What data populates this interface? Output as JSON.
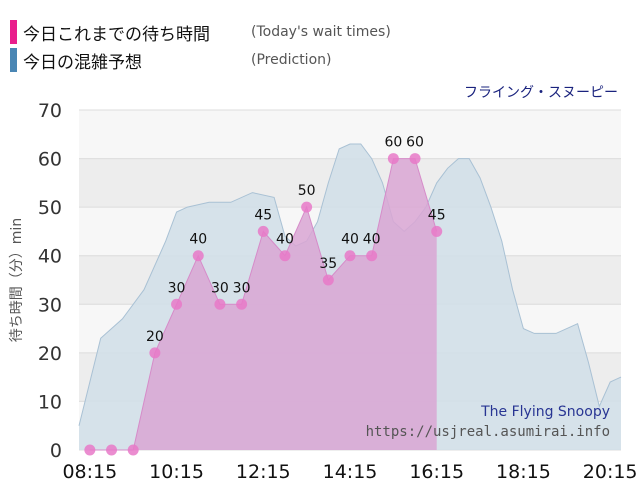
{
  "legend": {
    "today_label": "今日これまでの待ち時間",
    "today_sub": "(Today's wait times)",
    "prediction_label": "今日の混雑予想",
    "prediction_sub": "(Prediction)"
  },
  "colors": {
    "today": "#e91e8c",
    "prediction": "#4a86b4",
    "today_fill": "#d9a6d4",
    "prediction_fill": "#d2dfe8",
    "point": "#e879c8"
  },
  "chart_data": {
    "type": "area",
    "title": "フライング・スヌーピー",
    "ylabel": "待ち時間（分）min",
    "ylim": [
      0,
      70
    ],
    "yticks": [
      0,
      10,
      20,
      30,
      40,
      50,
      60,
      70
    ],
    "xlim": [
      "08:00",
      "20:30"
    ],
    "xticks": [
      "08:15",
      "10:15",
      "12:15",
      "14:15",
      "16:15",
      "18:15",
      "20:15"
    ],
    "grid": true,
    "series": [
      {
        "name": "今日の混雑予想",
        "type": "area",
        "points": [
          [
            "08:00",
            5
          ],
          [
            "08:30",
            23
          ],
          [
            "09:00",
            27
          ],
          [
            "09:30",
            33
          ],
          [
            "10:00",
            43
          ],
          [
            "10:15",
            49
          ],
          [
            "10:30",
            50
          ],
          [
            "11:00",
            51
          ],
          [
            "11:30",
            51
          ],
          [
            "12:00",
            53
          ],
          [
            "12:30",
            52
          ],
          [
            "12:45",
            44
          ],
          [
            "13:00",
            42
          ],
          [
            "13:15",
            43
          ],
          [
            "13:30",
            47
          ],
          [
            "13:45",
            55
          ],
          [
            "14:00",
            62
          ],
          [
            "14:15",
            63
          ],
          [
            "14:30",
            63
          ],
          [
            "14:45",
            60
          ],
          [
            "15:00",
            55
          ],
          [
            "15:15",
            47
          ],
          [
            "15:30",
            45
          ],
          [
            "15:45",
            47
          ],
          [
            "16:00",
            50
          ],
          [
            "16:15",
            55
          ],
          [
            "16:30",
            58
          ],
          [
            "16:45",
            60
          ],
          [
            "17:00",
            60
          ],
          [
            "17:15",
            56
          ],
          [
            "17:30",
            50
          ],
          [
            "17:45",
            43
          ],
          [
            "18:00",
            33
          ],
          [
            "18:15",
            25
          ],
          [
            "18:30",
            24
          ],
          [
            "19:00",
            24
          ],
          [
            "19:15",
            25
          ],
          [
            "19:30",
            26
          ],
          [
            "19:45",
            18
          ],
          [
            "20:00",
            9
          ],
          [
            "20:15",
            14
          ],
          [
            "20:30",
            15
          ]
        ]
      },
      {
        "name": "今日これまでの待ち時間",
        "type": "area",
        "points": [
          [
            "08:15",
            0
          ],
          [
            "08:45",
            0
          ],
          [
            "09:15",
            0
          ],
          [
            "09:45",
            20
          ],
          [
            "10:15",
            30
          ],
          [
            "10:45",
            40
          ],
          [
            "11:15",
            30
          ],
          [
            "11:45",
            30
          ],
          [
            "12:15",
            45
          ],
          [
            "12:45",
            40
          ],
          [
            "13:15",
            50
          ],
          [
            "13:45",
            35
          ],
          [
            "14:15",
            40
          ],
          [
            "14:45",
            40
          ],
          [
            "15:15",
            60
          ],
          [
            "15:45",
            60
          ],
          [
            "16:15",
            45
          ]
        ]
      }
    ],
    "annotations": [
      "The Flying Snoopy",
      "https://usjreal.asumirai.info"
    ]
  }
}
